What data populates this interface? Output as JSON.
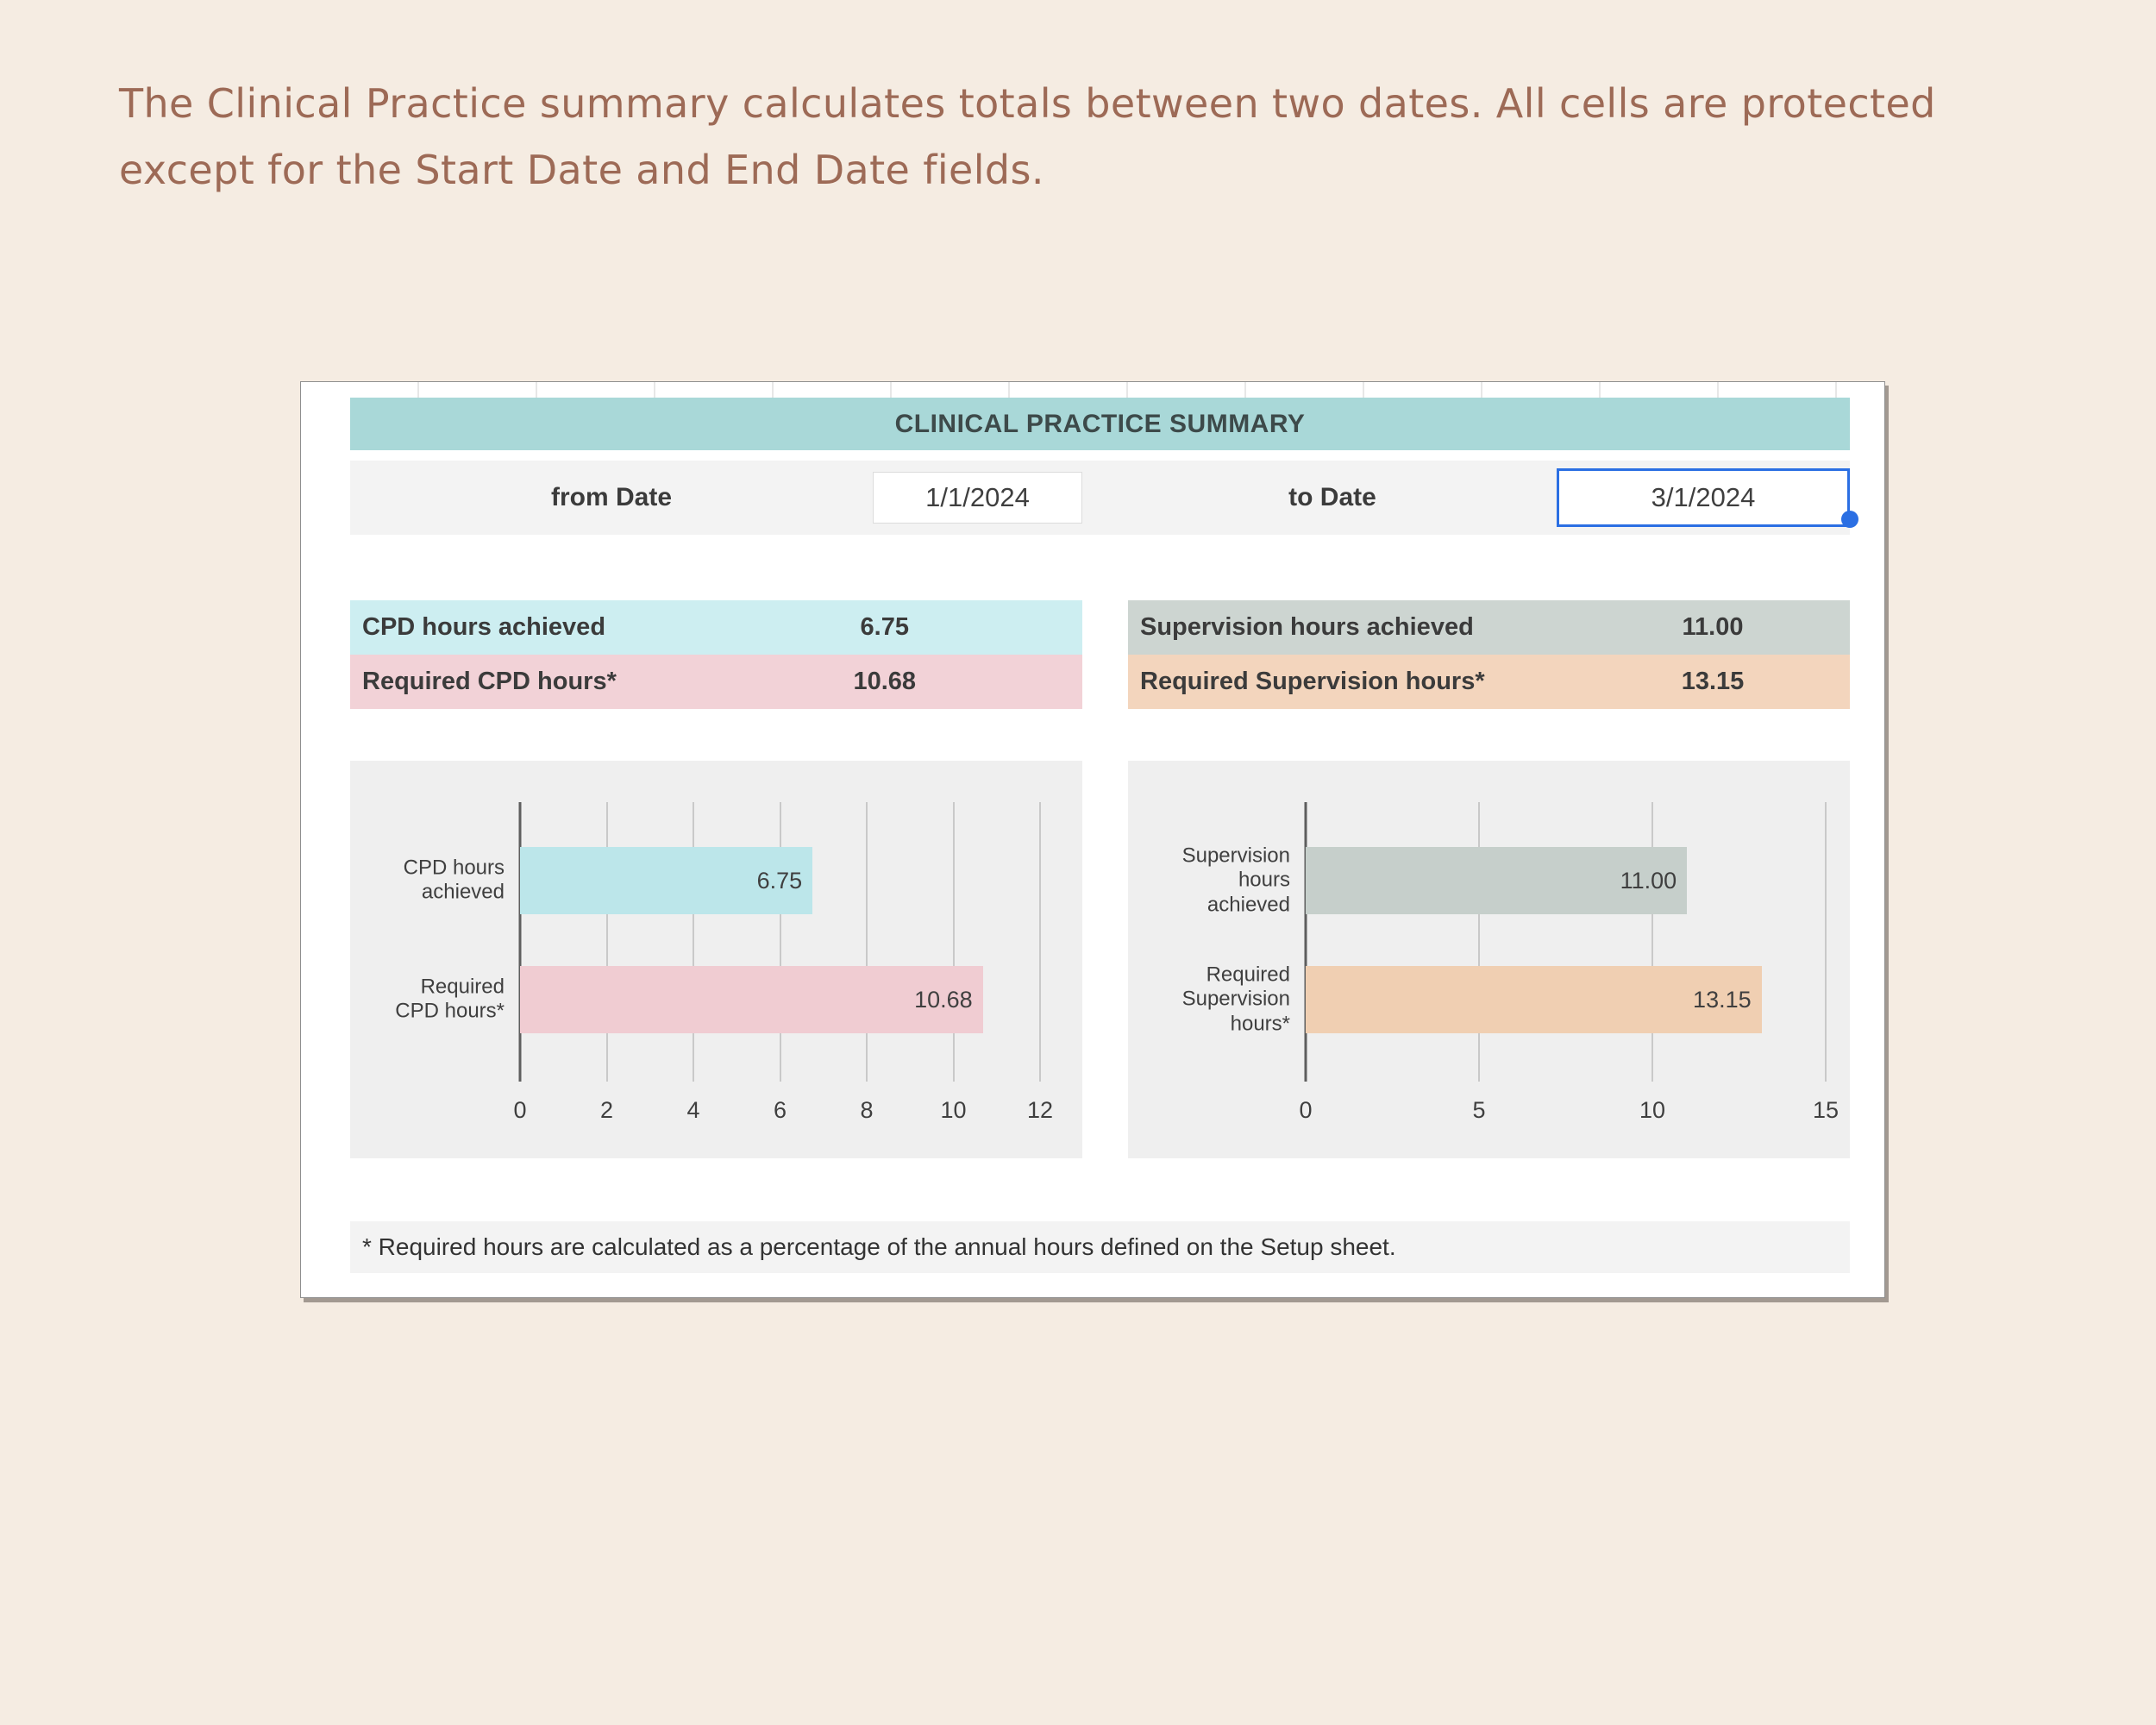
{
  "intro": {
    "lines": [
      "The Clinical Practice summary calculates totals between two dates. All cells are protected",
      "except for the Start Date and End Date fields."
    ],
    "text_color": "#9d6a56"
  },
  "panel": {
    "title": "CLINICAL PRACTICE SUMMARY",
    "title_bg": "#a9d8d8",
    "from_label": "from Date",
    "from_value": "1/1/2024",
    "to_label": "to Date",
    "to_value": "3/1/2024",
    "selection_color": "#2b6fe3",
    "footnote": "* Required hours are calculated as a percentage of the annual hours defined on the Setup sheet."
  },
  "summary": {
    "left": [
      {
        "label": "CPD hours achieved",
        "value": "6.75",
        "bg": "#cdeef1"
      },
      {
        "label": "Required CPD hours*",
        "value": "10.68",
        "bg": "#f2d2d7"
      }
    ],
    "right": [
      {
        "label": "Supervision hours achieved",
        "value": "11.00",
        "bg": "#cdd5d1"
      },
      {
        "label": "Required Supervision hours*",
        "value": "13.15",
        "bg": "#f3d5bd"
      }
    ]
  },
  "chart_data": [
    {
      "type": "bar",
      "orientation": "horizontal",
      "title": "",
      "categories": [
        "CPD hours\nachieved",
        "Required\nCPD hours*"
      ],
      "values": [
        6.75,
        10.68
      ],
      "value_labels": [
        "6.75",
        "10.68"
      ],
      "colors": [
        "#bce6ea",
        "#f0ccd2"
      ],
      "xlim": [
        0,
        12
      ],
      "xticks": [
        0,
        2,
        4,
        6,
        8,
        10,
        12
      ],
      "grid": true,
      "legend": false,
      "plot_bg": "#efefef"
    },
    {
      "type": "bar",
      "orientation": "horizontal",
      "title": "",
      "categories": [
        "Supervision\nhours\nachieved",
        "Required\nSupervision\nhours*"
      ],
      "values": [
        11.0,
        13.15
      ],
      "value_labels": [
        "11.00",
        "13.15"
      ],
      "colors": [
        "#c6cfcb",
        "#f0cfb2"
      ],
      "xlim": [
        0,
        15
      ],
      "xticks": [
        0,
        5,
        10,
        15
      ],
      "grid": true,
      "legend": false,
      "plot_bg": "#efefef"
    }
  ]
}
